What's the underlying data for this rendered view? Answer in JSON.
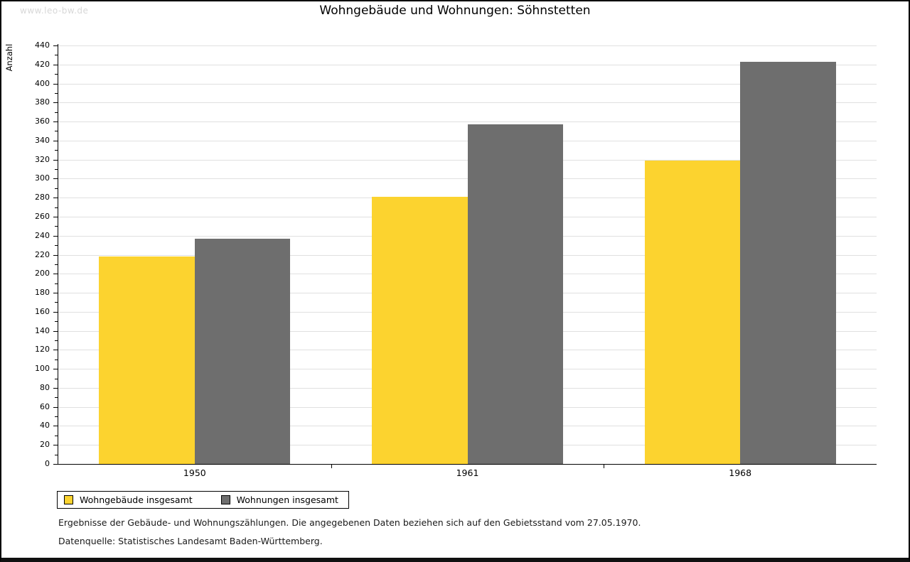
{
  "watermark": "www.leo-bw.de",
  "title": "Wohngebäude und Wohnungen: Söhnstetten",
  "footer": {
    "line1": "Ergebnisse der Gebäude- und Wohnungszählungen. Die angegebenen Daten beziehen sich auf den Gebietsstand vom 27.05.1970.",
    "line2": "Datenquelle: Statistisches Landesamt Baden-Württemberg."
  },
  "chart_data": {
    "type": "bar",
    "title": "Wohngebäude und Wohnungen: Söhnstetten",
    "xlabel": "",
    "ylabel": "Anzahl",
    "categories": [
      "1950",
      "1961",
      "1968"
    ],
    "series": [
      {
        "name": "Wohngebäude insgesamt",
        "color": "#FCD32F",
        "values": [
          218,
          281,
          319
        ]
      },
      {
        "name": "Wohnungen insgesamt",
        "color": "#6E6E6E",
        "values": [
          237,
          357,
          423
        ]
      }
    ],
    "ylim": [
      0,
      440
    ],
    "ytick_step": 20,
    "yminor_step": 10,
    "grid": true,
    "legend_position": "bottom-left",
    "colors": {
      "axis": "#000000",
      "gridline": "#e0e0e0",
      "background": "#ffffff",
      "watermark_text": "#d8d8d8"
    }
  }
}
